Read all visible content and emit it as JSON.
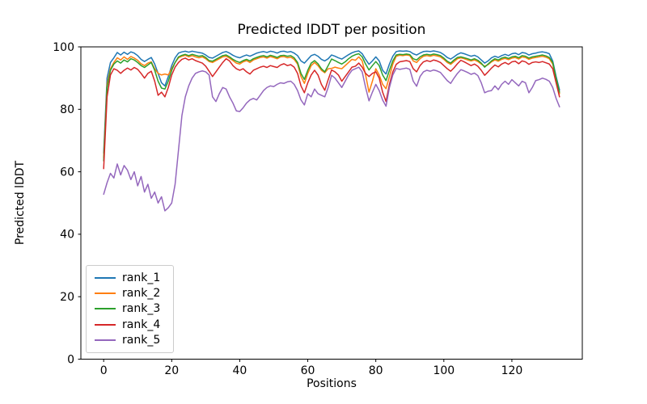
{
  "chart_data": {
    "type": "line",
    "title": "Predicted lDDT per position",
    "xlabel": "Positions",
    "ylabel": "Predicted lDDT",
    "x_is_index": true,
    "n_points": 135,
    "xlim": [
      -6.7,
      140.7
    ],
    "ylim": [
      0,
      100
    ],
    "xticks": [
      0,
      20,
      40,
      60,
      80,
      100,
      120
    ],
    "yticks": [
      0,
      20,
      40,
      60,
      80,
      100
    ],
    "grid": false,
    "legend_position": "lower left",
    "series": [
      {
        "name": "rank_1",
        "color": "#1f77b4",
        "values": [
          66,
          90,
          95,
          96.5,
          98.2,
          97.4,
          98.3,
          97.6,
          98.4,
          98.0,
          97.2,
          96.0,
          95.3,
          96.0,
          96.6,
          94.5,
          91.5,
          88.5,
          87.5,
          90.5,
          94.0,
          96.5,
          98.0,
          98.4,
          98.6,
          98.3,
          98.6,
          98.4,
          98.2,
          98.0,
          97.4,
          96.6,
          96.4,
          97.0,
          97.6,
          98.2,
          98.5,
          98.0,
          97.3,
          96.8,
          96.5,
          97.0,
          97.4,
          97.0,
          97.5,
          98.0,
          98.3,
          98.5,
          98.2,
          98.6,
          98.4,
          98.0,
          98.5,
          98.6,
          98.3,
          98.5,
          98.0,
          97.2,
          95.5,
          94.8,
          96.0,
          97.2,
          97.6,
          97.0,
          96.0,
          95.5,
          96.2,
          97.4,
          97.0,
          96.5,
          96.1,
          96.8,
          97.5,
          98.1,
          98.5,
          98.7,
          97.8,
          96.0,
          94.4,
          95.5,
          96.8,
          95.5,
          92.5,
          91.3,
          94.5,
          97.0,
          98.5,
          98.7,
          98.6,
          98.7,
          98.5,
          97.8,
          97.4,
          98.0,
          98.5,
          98.6,
          98.5,
          98.7,
          98.5,
          98.2,
          97.5,
          96.6,
          96.1,
          96.8,
          97.6,
          98.1,
          97.8,
          97.4,
          97.0,
          97.3,
          96.8,
          95.8,
          94.8,
          95.5,
          96.5,
          97.0,
          96.6,
          97.2,
          97.6,
          97.2,
          97.8,
          98.0,
          97.5,
          98.2,
          98.0,
          97.4,
          97.8,
          98.0,
          98.3,
          98.4,
          98.2,
          97.8,
          95.5,
          90.5,
          86.2
        ]
      },
      {
        "name": "rank_2",
        "color": "#ff7f0e",
        "values": [
          64.5,
          88,
          93,
          95,
          96.5,
          95.8,
          96.8,
          96.0,
          96.9,
          96.4,
          95.7,
          94.6,
          94.0,
          94.8,
          95.2,
          93.0,
          91.5,
          91.0,
          91.3,
          91.0,
          93.0,
          95.0,
          96.5,
          97.0,
          97.3,
          96.8,
          97.2,
          96.8,
          96.5,
          96.8,
          96.2,
          95.3,
          95.0,
          95.6,
          96.2,
          96.8,
          97.0,
          96.4,
          95.6,
          94.8,
          94.5,
          95.2,
          95.6,
          95.0,
          95.8,
          96.2,
          96.6,
          96.8,
          96.4,
          96.9,
          96.6,
          96.2,
          96.8,
          96.9,
          96.5,
          96.7,
          96.0,
          94.5,
          90.5,
          88.3,
          91.5,
          94.0,
          95.0,
          94.0,
          92.5,
          91.7,
          93.0,
          93.1,
          93.5,
          93.2,
          93.0,
          94.0,
          95.0,
          96.0,
          95.7,
          96.8,
          95.5,
          91.0,
          85.5,
          89.0,
          93.0,
          91.0,
          88.0,
          86.6,
          90.5,
          94.5,
          97.0,
          97.3,
          97.2,
          97.4,
          97.2,
          95.5,
          95.0,
          96.2,
          97.0,
          97.2,
          97.0,
          97.3,
          97.1,
          96.8,
          96.0,
          95.0,
          94.4,
          95.3,
          96.2,
          96.5,
          96.2,
          95.8,
          95.5,
          95.8,
          95.3,
          94.5,
          93.8,
          94.3,
          95.2,
          95.8,
          95.4,
          96.0,
          96.3,
          95.9,
          96.4,
          96.6,
          96.1,
          96.8,
          96.6,
          96.0,
          96.4,
          96.6,
          96.8,
          97.0,
          96.7,
          96.2,
          94.5,
          89.5,
          85.0
        ]
      },
      {
        "name": "rank_3",
        "color": "#2ca02c",
        "values": [
          63.5,
          87,
          92.5,
          94.5,
          95.5,
          94.8,
          95.8,
          95.2,
          96.2,
          95.8,
          95.0,
          94.0,
          93.4,
          94.2,
          95.0,
          92.5,
          89.0,
          86.8,
          86.5,
          89.0,
          92.5,
          95.0,
          96.8,
          97.3,
          97.6,
          97.2,
          97.6,
          97.3,
          97.0,
          97.2,
          96.6,
          95.6,
          95.4,
          96.0,
          96.6,
          97.2,
          97.4,
          96.8,
          96.0,
          95.4,
          95.0,
          95.6,
          96.0,
          95.5,
          96.2,
          96.6,
          97.0,
          97.2,
          96.8,
          97.3,
          97.0,
          96.6,
          97.2,
          97.3,
          97.0,
          97.2,
          96.5,
          95.0,
          91.5,
          89.6,
          92.5,
          94.8,
          95.6,
          94.6,
          93.0,
          92.0,
          94.0,
          96.1,
          95.6,
          95.0,
          94.5,
          95.2,
          96.2,
          97.0,
          97.5,
          97.8,
          96.8,
          94.5,
          92.6,
          94.0,
          95.3,
          94.0,
          91.0,
          89.2,
          92.5,
          95.5,
          97.4,
          97.6,
          97.5,
          97.7,
          97.5,
          96.2,
          95.8,
          96.8,
          97.4,
          97.6,
          97.4,
          97.7,
          97.5,
          97.2,
          96.4,
          95.4,
          94.8,
          95.8,
          96.6,
          96.8,
          96.5,
          96.2,
          95.8,
          96.2,
          95.7,
          94.8,
          93.5,
          94.5,
          95.5,
          96.2,
          95.8,
          96.4,
          96.7,
          96.3,
          96.8,
          97.0,
          96.5,
          97.2,
          97.0,
          96.4,
          96.8,
          97.0,
          97.2,
          97.4,
          97.1,
          96.6,
          95.0,
          90.0,
          85.5
        ]
      },
      {
        "name": "rank_4",
        "color": "#d62728",
        "values": [
          61,
          84,
          91,
          93,
          92.5,
          91.5,
          92.5,
          93.2,
          92.6,
          93.4,
          92.8,
          91.5,
          90.0,
          91.5,
          92.2,
          89.0,
          84.5,
          85.5,
          84.0,
          87.0,
          91.0,
          93.5,
          95.0,
          96.0,
          96.4,
          95.8,
          96.2,
          95.6,
          95.2,
          94.8,
          93.8,
          92.2,
          90.5,
          92.0,
          93.5,
          95.0,
          96.2,
          95.5,
          94.0,
          93.0,
          92.5,
          93.0,
          92.0,
          91.3,
          92.5,
          93.0,
          93.5,
          93.8,
          93.4,
          94.0,
          93.7,
          93.4,
          94.2,
          94.6,
          94.0,
          94.3,
          93.5,
          91.5,
          87.5,
          85.3,
          88.5,
          91.0,
          92.5,
          91.0,
          88.0,
          86.1,
          89.5,
          92.6,
          92.0,
          91.0,
          89.0,
          90.5,
          92.0,
          93.5,
          93.8,
          94.8,
          93.5,
          91.5,
          90.5,
          91.5,
          92.0,
          90.0,
          85.5,
          82.5,
          88.0,
          92.0,
          94.4,
          95.2,
          95.4,
          95.6,
          95.3,
          93.0,
          92.0,
          94.0,
          95.2,
          95.6,
          95.3,
          95.8,
          95.5,
          95.0,
          94.0,
          93.0,
          92.2,
          93.3,
          94.6,
          95.7,
          95.2,
          94.6,
          94.0,
          94.5,
          93.8,
          92.5,
          90.9,
          92.0,
          93.2,
          94.2,
          93.6,
          94.5,
          95.0,
          94.4,
          95.2,
          95.4,
          94.6,
          95.5,
          95.2,
          94.4,
          95.0,
          95.2,
          95.0,
          95.3,
          94.9,
          94.5,
          93.0,
          88.5,
          84.0
        ]
      },
      {
        "name": "rank_5",
        "color": "#9467bd",
        "values": [
          52.8,
          56.5,
          59.5,
          58.0,
          62.5,
          59.0,
          62.0,
          60.5,
          57.5,
          60.0,
          55.5,
          58.5,
          53.5,
          56.0,
          51.5,
          53.5,
          50.0,
          52.0,
          47.5,
          48.5,
          50.0,
          56.0,
          67.0,
          78.0,
          84.0,
          87.5,
          90.0,
          91.5,
          92.0,
          92.3,
          92.0,
          91.0,
          84.0,
          82.5,
          85.0,
          87.0,
          86.5,
          84.0,
          82.0,
          79.5,
          79.3,
          80.5,
          82.0,
          83.0,
          83.5,
          83.0,
          84.5,
          86.0,
          87.0,
          87.5,
          87.3,
          88.0,
          88.5,
          88.3,
          88.8,
          89.0,
          88.0,
          86.0,
          83.0,
          81.4,
          85.0,
          84.0,
          86.5,
          85.0,
          84.5,
          84.0,
          87.0,
          90.9,
          90.0,
          88.5,
          87.0,
          89.0,
          91.0,
          92.5,
          93.0,
          93.5,
          92.0,
          87.0,
          82.7,
          85.5,
          88.0,
          86.0,
          83.0,
          81.0,
          87.0,
          91.0,
          93.1,
          92.8,
          93.0,
          93.2,
          92.8,
          89.0,
          87.4,
          90.5,
          92.0,
          92.5,
          92.2,
          92.6,
          92.3,
          91.8,
          90.5,
          89.2,
          88.3,
          90.0,
          91.5,
          92.7,
          92.3,
          91.8,
          91.2,
          91.6,
          90.8,
          88.5,
          85.3,
          85.8,
          86.0,
          87.5,
          86.3,
          88.0,
          89.0,
          88.0,
          89.5,
          88.5,
          87.5,
          89.0,
          88.5,
          85.3,
          87.0,
          89.2,
          89.5,
          90.0,
          89.6,
          89.0,
          87.0,
          83.5,
          80.8
        ]
      }
    ],
    "axis_color": "#000000",
    "background_color": "#ffffff"
  }
}
